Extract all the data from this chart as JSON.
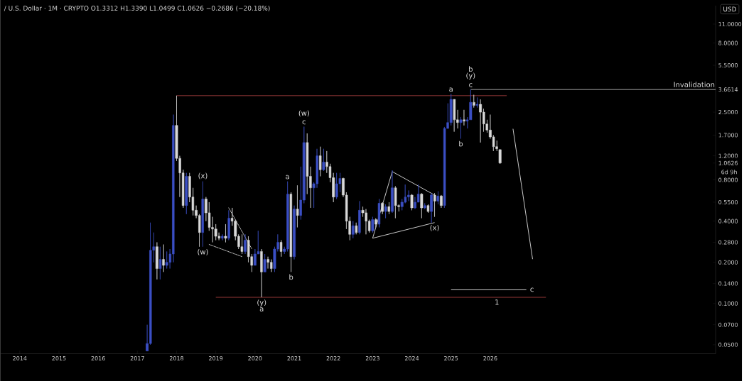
{
  "chart_data": {
    "type": "candlestick",
    "title": "/ U.S. Dollar · 1M · CRYPTO  O1.3312  H1.3390  L1.0499  C1.0626  −0.2686 (−20.18%)",
    "x": [
      "2017-04",
      "2017-05",
      "2017-06",
      "2017-07",
      "2017-08",
      "2017-09",
      "2017-10",
      "2017-11",
      "2017-12",
      "2018-01",
      "2018-02",
      "2018-03",
      "2018-04",
      "2018-05",
      "2018-06",
      "2018-07",
      "2018-08",
      "2018-09",
      "2018-10",
      "2018-11",
      "2018-12",
      "2019-01",
      "2019-02",
      "2019-03",
      "2019-04",
      "2019-05",
      "2019-06",
      "2019-07",
      "2019-08",
      "2019-09",
      "2019-10",
      "2019-11",
      "2019-12",
      "2020-01",
      "2020-02",
      "2020-03",
      "2020-04",
      "2020-05",
      "2020-06",
      "2020-07",
      "2020-08",
      "2020-09",
      "2020-10",
      "2020-11",
      "2020-12",
      "2021-01",
      "2021-02",
      "2021-03",
      "2021-04",
      "2021-05",
      "2021-06",
      "2021-07",
      "2021-08",
      "2021-09",
      "2021-10",
      "2021-11",
      "2021-12",
      "2022-01",
      "2022-02",
      "2022-03",
      "2022-04",
      "2022-05",
      "2022-06",
      "2022-07",
      "2022-08",
      "2022-09",
      "2022-10",
      "2022-11",
      "2022-12",
      "2023-01",
      "2023-02",
      "2023-03",
      "2023-04",
      "2023-05",
      "2023-06",
      "2023-07",
      "2023-08",
      "2023-09",
      "2023-10",
      "2023-11",
      "2023-12",
      "2024-01",
      "2024-02",
      "2024-03",
      "2024-04",
      "2024-05",
      "2024-06",
      "2024-07",
      "2024-08",
      "2024-09",
      "2024-10",
      "2024-11",
      "2024-12",
      "2025-01",
      "2025-02",
      "2025-03",
      "2025-04",
      "2025-05",
      "2025-06",
      "2025-07",
      "2025-08",
      "2025-09",
      "2025-10",
      "2025-11",
      "2025-12",
      "2026-01",
      "2026-02",
      "2026-03",
      "2026-04"
    ],
    "ohlc": [
      [
        0.045,
        0.07,
        0.045,
        0.051
      ],
      [
        0.051,
        0.39,
        0.05,
        0.245
      ],
      [
        0.245,
        0.33,
        0.2,
        0.26
      ],
      [
        0.26,
        0.28,
        0.15,
        0.18
      ],
      [
        0.18,
        0.26,
        0.15,
        0.21
      ],
      [
        0.21,
        0.27,
        0.17,
        0.19
      ],
      [
        0.19,
        0.24,
        0.18,
        0.2
      ],
      [
        0.2,
        0.25,
        0.18,
        0.23
      ],
      [
        0.23,
        2.4,
        0.2,
        2.0
      ],
      [
        2.0,
        3.3,
        1.1,
        1.15
      ],
      [
        1.15,
        1.2,
        0.6,
        0.9
      ],
      [
        0.9,
        0.95,
        0.5,
        0.52
      ],
      [
        0.52,
        0.9,
        0.45,
        0.85
      ],
      [
        0.85,
        0.9,
        0.55,
        0.6
      ],
      [
        0.6,
        0.7,
        0.44,
        0.48
      ],
      [
        0.48,
        0.52,
        0.42,
        0.44
      ],
      [
        0.44,
        0.45,
        0.26,
        0.33
      ],
      [
        0.33,
        0.78,
        0.26,
        0.58
      ],
      [
        0.58,
        0.6,
        0.4,
        0.46
      ],
      [
        0.46,
        0.55,
        0.34,
        0.36
      ],
      [
        0.36,
        0.43,
        0.28,
        0.35
      ],
      [
        0.35,
        0.38,
        0.29,
        0.31
      ],
      [
        0.31,
        0.33,
        0.29,
        0.3
      ],
      [
        0.3,
        0.32,
        0.29,
        0.31
      ],
      [
        0.31,
        0.38,
        0.28,
        0.3
      ],
      [
        0.3,
        0.48,
        0.29,
        0.42
      ],
      [
        0.42,
        0.5,
        0.37,
        0.4
      ],
      [
        0.4,
        0.41,
        0.29,
        0.31
      ],
      [
        0.31,
        0.32,
        0.25,
        0.26
      ],
      [
        0.26,
        0.32,
        0.23,
        0.24
      ],
      [
        0.24,
        0.32,
        0.23,
        0.29
      ],
      [
        0.29,
        0.31,
        0.2,
        0.22
      ],
      [
        0.22,
        0.23,
        0.17,
        0.19
      ],
      [
        0.19,
        0.25,
        0.19,
        0.23
      ],
      [
        0.23,
        0.34,
        0.23,
        0.24
      ],
      [
        0.24,
        0.25,
        0.111,
        0.17
      ],
      [
        0.17,
        0.23,
        0.17,
        0.21
      ],
      [
        0.21,
        0.22,
        0.18,
        0.2
      ],
      [
        0.2,
        0.21,
        0.17,
        0.18
      ],
      [
        0.18,
        0.26,
        0.17,
        0.25
      ],
      [
        0.25,
        0.32,
        0.24,
        0.28
      ],
      [
        0.28,
        0.29,
        0.22,
        0.24
      ],
      [
        0.24,
        0.26,
        0.23,
        0.25
      ],
      [
        0.25,
        0.78,
        0.24,
        0.63
      ],
      [
        0.63,
        0.65,
        0.17,
        0.22
      ],
      [
        0.22,
        0.52,
        0.21,
        0.49
      ],
      [
        0.49,
        0.73,
        0.36,
        0.44
      ],
      [
        0.44,
        1.0,
        0.41,
        0.57
      ],
      [
        0.57,
        1.96,
        0.54,
        1.5
      ],
      [
        1.5,
        1.75,
        0.63,
        0.85
      ],
      [
        0.85,
        1.0,
        0.5,
        0.7
      ],
      [
        0.7,
        0.77,
        0.5,
        0.75
      ],
      [
        0.75,
        1.35,
        0.7,
        1.2
      ],
      [
        1.2,
        1.4,
        0.85,
        0.95
      ],
      [
        0.95,
        1.35,
        0.93,
        1.08
      ],
      [
        1.08,
        1.3,
        0.9,
        1.0
      ],
      [
        1.0,
        1.05,
        0.77,
        0.83
      ],
      [
        0.83,
        0.9,
        0.55,
        0.6
      ],
      [
        0.6,
        0.9,
        0.58,
        0.75
      ],
      [
        0.75,
        0.9,
        0.65,
        0.82
      ],
      [
        0.82,
        0.83,
        0.6,
        0.62
      ],
      [
        0.62,
        0.65,
        0.35,
        0.4
      ],
      [
        0.4,
        0.43,
        0.29,
        0.32
      ],
      [
        0.32,
        0.4,
        0.3,
        0.37
      ],
      [
        0.37,
        0.39,
        0.32,
        0.33
      ],
      [
        0.33,
        0.56,
        0.32,
        0.48
      ],
      [
        0.48,
        0.51,
        0.43,
        0.46
      ],
      [
        0.46,
        0.49,
        0.32,
        0.4
      ],
      [
        0.4,
        0.41,
        0.33,
        0.34
      ],
      [
        0.34,
        0.43,
        0.33,
        0.41
      ],
      [
        0.41,
        0.42,
        0.36,
        0.38
      ],
      [
        0.38,
        0.58,
        0.36,
        0.54
      ],
      [
        0.54,
        0.55,
        0.45,
        0.47
      ],
      [
        0.47,
        0.53,
        0.42,
        0.51
      ],
      [
        0.51,
        0.55,
        0.45,
        0.47
      ],
      [
        0.47,
        0.94,
        0.46,
        0.7
      ],
      [
        0.7,
        0.72,
        0.42,
        0.52
      ],
      [
        0.52,
        0.53,
        0.47,
        0.51
      ],
      [
        0.51,
        0.58,
        0.48,
        0.55
      ],
      [
        0.55,
        0.74,
        0.54,
        0.6
      ],
      [
        0.6,
        0.67,
        0.56,
        0.62
      ],
      [
        0.62,
        0.63,
        0.48,
        0.5
      ],
      [
        0.5,
        0.6,
        0.49,
        0.55
      ],
      [
        0.55,
        0.74,
        0.55,
        0.63
      ],
      [
        0.63,
        0.64,
        0.42,
        0.5
      ],
      [
        0.5,
        0.54,
        0.49,
        0.52
      ],
      [
        0.52,
        0.53,
        0.46,
        0.47
      ],
      [
        0.47,
        0.64,
        0.39,
        0.62
      ],
      [
        0.62,
        0.64,
        0.43,
        0.56
      ],
      [
        0.56,
        0.66,
        0.53,
        0.61
      ],
      [
        0.61,
        0.62,
        0.5,
        0.52
      ],
      [
        0.52,
        1.95,
        0.5,
        1.9
      ],
      [
        1.9,
        2.9,
        1.9,
        2.1
      ],
      [
        2.1,
        3.4,
        2.0,
        3.1
      ],
      [
        3.1,
        3.1,
        1.8,
        2.2
      ],
      [
        2.2,
        2.6,
        1.9,
        2.1
      ],
      [
        2.1,
        2.3,
        1.6,
        2.2
      ],
      [
        2.2,
        2.6,
        2.0,
        2.15
      ],
      [
        2.15,
        2.3,
        1.9,
        2.2
      ],
      [
        2.2,
        3.66,
        2.2,
        2.95
      ],
      [
        2.95,
        3.35,
        2.7,
        2.8
      ],
      [
        2.8,
        3.2,
        2.7,
        2.85
      ],
      [
        2.85,
        3.1,
        1.5,
        2.5
      ],
      [
        2.5,
        2.65,
        1.8,
        2.05
      ],
      [
        2.05,
        2.2,
        1.77,
        1.85
      ],
      [
        1.85,
        2.4,
        1.6,
        1.65
      ],
      [
        1.65,
        1.7,
        1.3,
        1.4
      ],
      [
        1.4,
        1.55,
        1.3,
        1.35
      ],
      [
        1.3312,
        1.339,
        1.0499,
        1.0626
      ]
    ],
    "colors": [
      "#3b4fc4",
      "#3b4fc4",
      "#3b4fc4",
      "#d9d9d9",
      "#3b4fc4",
      "#d9d9d9",
      "#3b4fc4",
      "#3b4fc4",
      "#3b4fc4",
      "#d9d9d9",
      "#d9d9d9",
      "#d9d9d9",
      "#3b4fc4",
      "#d9d9d9",
      "#d9d9d9",
      "#d9d9d9",
      "#d9d9d9",
      "#3b4fc4",
      "#d9d9d9",
      "#d9d9d9",
      "#d9d9d9",
      "#d9d9d9",
      "#d9d9d9",
      "#3b4fc4",
      "#d9d9d9",
      "#3b4fc4",
      "#d9d9d9",
      "#d9d9d9",
      "#d9d9d9",
      "#d9d9d9",
      "#3b4fc4",
      "#d9d9d9",
      "#d9d9d9",
      "#3b4fc4",
      "#3b4fc4",
      "#d9d9d9",
      "#3b4fc4",
      "#d9d9d9",
      "#d9d9d9",
      "#3b4fc4",
      "#3b4fc4",
      "#d9d9d9",
      "#3b4fc4",
      "#3b4fc4",
      "#d9d9d9",
      "#3b4fc4",
      "#d9d9d9",
      "#3b4fc4",
      "#3b4fc4",
      "#d9d9d9",
      "#d9d9d9",
      "#3b4fc4",
      "#3b4fc4",
      "#d9d9d9",
      "#3b4fc4",
      "#d9d9d9",
      "#d9d9d9",
      "#d9d9d9",
      "#3b4fc4",
      "#3b4fc4",
      "#d9d9d9",
      "#d9d9d9",
      "#d9d9d9",
      "#3b4fc4",
      "#d9d9d9",
      "#3b4fc4",
      "#d9d9d9",
      "#d9d9d9",
      "#d9d9d9",
      "#3b4fc4",
      "#d9d9d9",
      "#3b4fc4",
      "#d9d9d9",
      "#3b4fc4",
      "#d9d9d9",
      "#3b4fc4",
      "#d9d9d9",
      "#d9d9d9",
      "#3b4fc4",
      "#3b4fc4",
      "#3b4fc4",
      "#d9d9d9",
      "#3b4fc4",
      "#3b4fc4",
      "#d9d9d9",
      "#3b4fc4",
      "#d9d9d9",
      "#3b4fc4",
      "#d9d9d9",
      "#3b4fc4",
      "#d9d9d9",
      "#3b4fc4",
      "#3b4fc4",
      "#3b4fc4",
      "#d9d9d9",
      "#d9d9d9",
      "#3b4fc4",
      "#d9d9d9",
      "#3b4fc4",
      "#3b4fc4",
      "#d9d9d9",
      "#3b4fc4",
      "#d9d9d9",
      "#d9d9d9",
      "#d9d9d9",
      "#d9d9d9",
      "#d9d9d9",
      "#d9d9d9",
      "#d9d9d9"
    ],
    "series": [
      {
        "type": "line",
        "color": "#a03c3c",
        "line_style": "solid",
        "x": [
          "2018-01",
          "2026-06"
        ],
        "values": [
          3.3,
          3.3
        ]
      },
      {
        "type": "line",
        "color": "#a03c3c",
        "line_style": "solid",
        "x": [
          "2019-01",
          "2027-06"
        ],
        "values": [
          0.111,
          0.111
        ]
      },
      {
        "type": "line",
        "color": "#b0b0b0",
        "line_style": "solid",
        "x": [
          "2025-07",
          "2031-10"
        ],
        "values": [
          3.66,
          3.66
        ]
      },
      {
        "type": "line",
        "color": "#e0e0e0",
        "line_style": "solid",
        "x": [
          "2023-01",
          "2023-07"
        ],
        "values": [
          0.3,
          0.92
        ]
      },
      {
        "type": "line",
        "color": "#e0e0e0",
        "line_style": "solid",
        "x": [
          "2023-07",
          "2024-08"
        ],
        "values": [
          0.92,
          0.62
        ]
      },
      {
        "type": "line",
        "color": "#e0e0e0",
        "line_style": "solid",
        "x": [
          "2023-01",
          "2024-08"
        ],
        "values": [
          0.3,
          0.39
        ]
      },
      {
        "type": "line",
        "color": "#e0e0e0",
        "line_style": "dotted",
        "x": [
          "2018-11",
          "2019-09"
        ],
        "values": [
          0.27,
          0.22
        ]
      },
      {
        "type": "line",
        "color": "#e0e0e0",
        "line_style": "dotted",
        "x": [
          "2019-05",
          "2019-12"
        ],
        "values": [
          0.5,
          0.25
        ]
      },
      {
        "type": "line",
        "color": "#e0e0e0",
        "line_style": "solid",
        "x": [
          "2025-01",
          "2026-12"
        ],
        "values": [
          0.126,
          0.126
        ]
      },
      {
        "type": "line",
        "color": "#e0e0e0",
        "line_style": "solid",
        "x": [
          "2026-08",
          "2027-02"
        ],
        "values": [
          1.89,
          0.211
        ]
      }
    ],
    "annotations": [
      "USD",
      "6d 9h",
      {
        "text": "c",
        "x": "2025-07",
        "y": 3.66
      },
      {
        "text": "(y)",
        "x": "2025-07",
        "y": 3.66
      },
      {
        "text": "b",
        "x": "2025-07",
        "y": 3.66
      },
      {
        "text": "a",
        "x": "2025-01",
        "y": 3.4
      },
      {
        "text": "b",
        "x": "2025-04",
        "y": 1.6
      },
      {
        "text": "c",
        "x": "2021-04",
        "y": 1.96
      },
      {
        "text": "(w)",
        "x": "2021-04",
        "y": 1.96
      },
      {
        "text": "(x)",
        "x": "2018-09",
        "y": 0.78
      },
      {
        "text": "(w)",
        "x": "2018-09",
        "y": 0.26
      },
      {
        "text": "a",
        "x": "2020-11",
        "y": 0.78
      },
      {
        "text": "b",
        "x": "2020-12",
        "y": 0.17
      },
      {
        "text": "(y)",
        "x": "2020-03",
        "y": 0.111
      },
      {
        "text": "a",
        "x": "2020-03",
        "y": 0.111
      },
      {
        "text": "(x)",
        "x": "2024-08",
        "y": 0.39
      },
      {
        "text": "c",
        "x": "2026-12",
        "y": 0.126
      },
      {
        "text": "1",
        "x": "2026-03",
        "y": 0.111
      },
      {
        "text": "Invalidation",
        "x": "2031-10",
        "y": 3.66
      }
    ],
    "xlim": [
      "2013-07",
      "2031-10"
    ],
    "ylim": [
      0.043,
      15
    ],
    "xticks": [
      "2014",
      "2015",
      "2016",
      "2017",
      "2018",
      "2019",
      "2020",
      "2021",
      "2022",
      "2023",
      "2024",
      "2025",
      "2026"
    ],
    "yticks": [
      {
        "value": 0.05,
        "label": "0.0500"
      },
      {
        "value": 0.07,
        "label": "0.0700"
      },
      {
        "value": 0.1,
        "label": "0.1000"
      },
      {
        "value": 0.14,
        "label": "0.1400"
      },
      {
        "value": 0.2,
        "label": "0.2000"
      },
      {
        "value": 0.28,
        "label": "0.2800"
      },
      {
        "value": 0.4,
        "label": "0.4000"
      },
      {
        "value": 0.55,
        "label": "0.5500"
      },
      {
        "value": 0.8,
        "label": "0.8000"
      },
      {
        "value": 1.0626,
        "label": "1.0626"
      },
      {
        "value": 1.2,
        "label": "1.2000"
      },
      {
        "value": 1.7,
        "label": "1.7000"
      },
      {
        "value": 2.5,
        "label": "2.5000"
      },
      {
        "value": 3.6614,
        "label": "3.6614"
      },
      {
        "value": 5.5,
        "label": "5.5000"
      },
      {
        "value": 8.0,
        "label": "8.0000"
      },
      {
        "value": 11.0,
        "label": "11.0000"
      }
    ],
    "log": "y",
    "grid": false
  }
}
